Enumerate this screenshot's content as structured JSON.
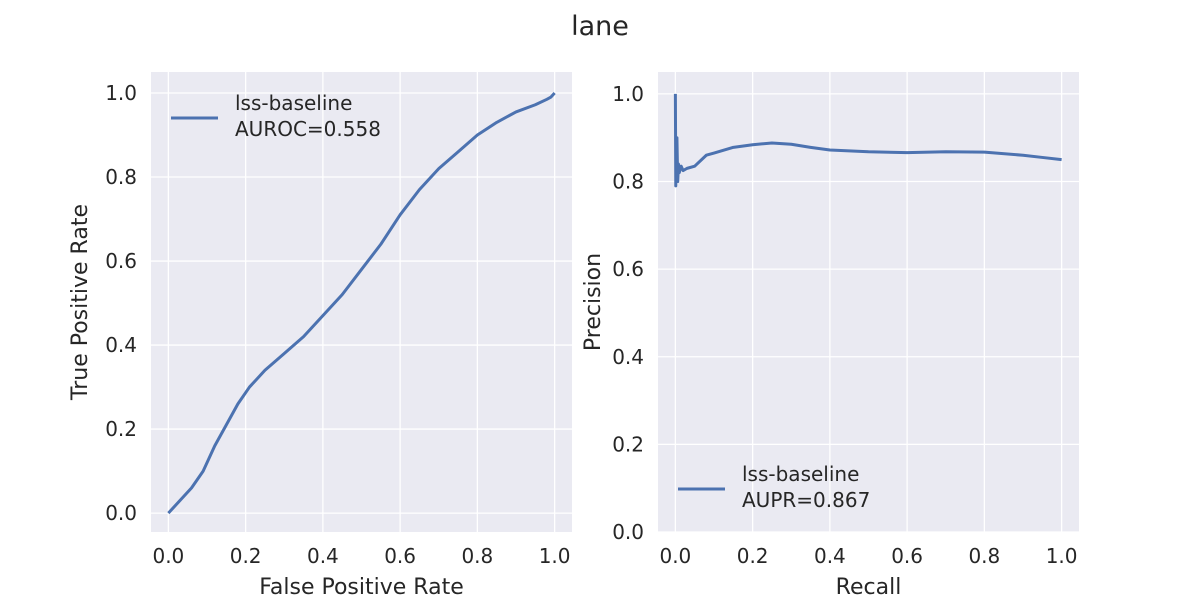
{
  "figure": {
    "title": "lane"
  },
  "colors": {
    "panel_bg": "#eaeaf2",
    "grid": "#ffffff",
    "line": "#4c72b0",
    "text": "#262626"
  },
  "chart_data": [
    {
      "type": "line",
      "xlabel": "False Positive Rate",
      "ylabel": "True Positive Rate",
      "xlim": [
        -0.045,
        1.045
      ],
      "ylim": [
        -0.045,
        1.05
      ],
      "xticks": [
        "0.0",
        "0.2",
        "0.4",
        "0.6",
        "0.8",
        "1.0"
      ],
      "yticks": [
        "0.0",
        "0.2",
        "0.4",
        "0.6",
        "0.8",
        "1.0"
      ],
      "grid": true,
      "legend_position": "top-left",
      "series": [
        {
          "name": "lss-baseline",
          "legend_lines": [
            "lss-baseline",
            "AUROC=0.558"
          ],
          "x": [
            0,
            0.03,
            0.06,
            0.09,
            0.12,
            0.15,
            0.18,
            0.21,
            0.25,
            0.3,
            0.35,
            0.4,
            0.45,
            0.5,
            0.55,
            0.6,
            0.65,
            0.7,
            0.75,
            0.8,
            0.85,
            0.9,
            0.95,
            0.98,
            0.99,
            1.0
          ],
          "y": [
            0,
            0.03,
            0.06,
            0.1,
            0.16,
            0.21,
            0.26,
            0.3,
            0.34,
            0.38,
            0.42,
            0.47,
            0.52,
            0.58,
            0.64,
            0.71,
            0.77,
            0.82,
            0.86,
            0.9,
            0.93,
            0.955,
            0.972,
            0.985,
            0.99,
            1.0
          ]
        }
      ]
    },
    {
      "type": "line",
      "xlabel": "Recall",
      "ylabel": "Precision",
      "xlim": [
        -0.045,
        1.045
      ],
      "ylim": [
        0,
        1.05
      ],
      "xticks": [
        "0.0",
        "0.2",
        "0.4",
        "0.6",
        "0.8",
        "1.0"
      ],
      "yticks": [
        "0.0",
        "0.2",
        "0.4",
        "0.6",
        "0.8",
        "1.0"
      ],
      "grid": true,
      "legend_position": "bottom-left",
      "series": [
        {
          "name": "lss-baseline",
          "legend_lines": [
            "lss-baseline",
            "AUPR=0.867"
          ],
          "x": [
            0,
            0.001,
            0.002,
            0.003,
            0.004,
            0.006,
            0.008,
            0.01,
            0.015,
            0.02,
            0.03,
            0.05,
            0.08,
            0.1,
            0.15,
            0.2,
            0.25,
            0.3,
            0.35,
            0.4,
            0.5,
            0.6,
            0.7,
            0.8,
            0.9,
            0.95,
            1.0
          ],
          "y": [
            1.0,
            0.79,
            0.85,
            0.81,
            0.9,
            0.8,
            0.84,
            0.82,
            0.835,
            0.825,
            0.83,
            0.835,
            0.86,
            0.865,
            0.878,
            0.884,
            0.888,
            0.885,
            0.878,
            0.872,
            0.868,
            0.866,
            0.868,
            0.867,
            0.86,
            0.855,
            0.85
          ]
        }
      ]
    }
  ]
}
